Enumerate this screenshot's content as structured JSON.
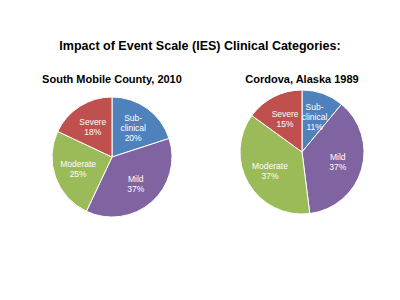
{
  "title": "Impact of Event Scale (IES) Clinical Categories:",
  "chart_data": [
    {
      "type": "pie",
      "title": "South Mobile County, 2010",
      "categories": [
        "Sub-clinical",
        "Mild",
        "Moderate",
        "Severe"
      ],
      "values": [
        20,
        37,
        25,
        18
      ],
      "value_labels": [
        "20%",
        "37%",
        "25%",
        "18%"
      ],
      "colors": [
        "#4f81bd",
        "#8064a2",
        "#9bbb59",
        "#c0504d"
      ],
      "data_labels": true
    },
    {
      "type": "pie",
      "title": "Cordova, Alaska 1989",
      "categories": [
        "Sub-clinical",
        "Mild",
        "Moderate",
        "Severe"
      ],
      "values": [
        11,
        37,
        37,
        15
      ],
      "value_labels": [
        "11%",
        "37%",
        "37%",
        "15%"
      ],
      "colors": [
        "#4f81bd",
        "#8064a2",
        "#9bbb59",
        "#c0504d"
      ],
      "data_labels": true
    }
  ]
}
